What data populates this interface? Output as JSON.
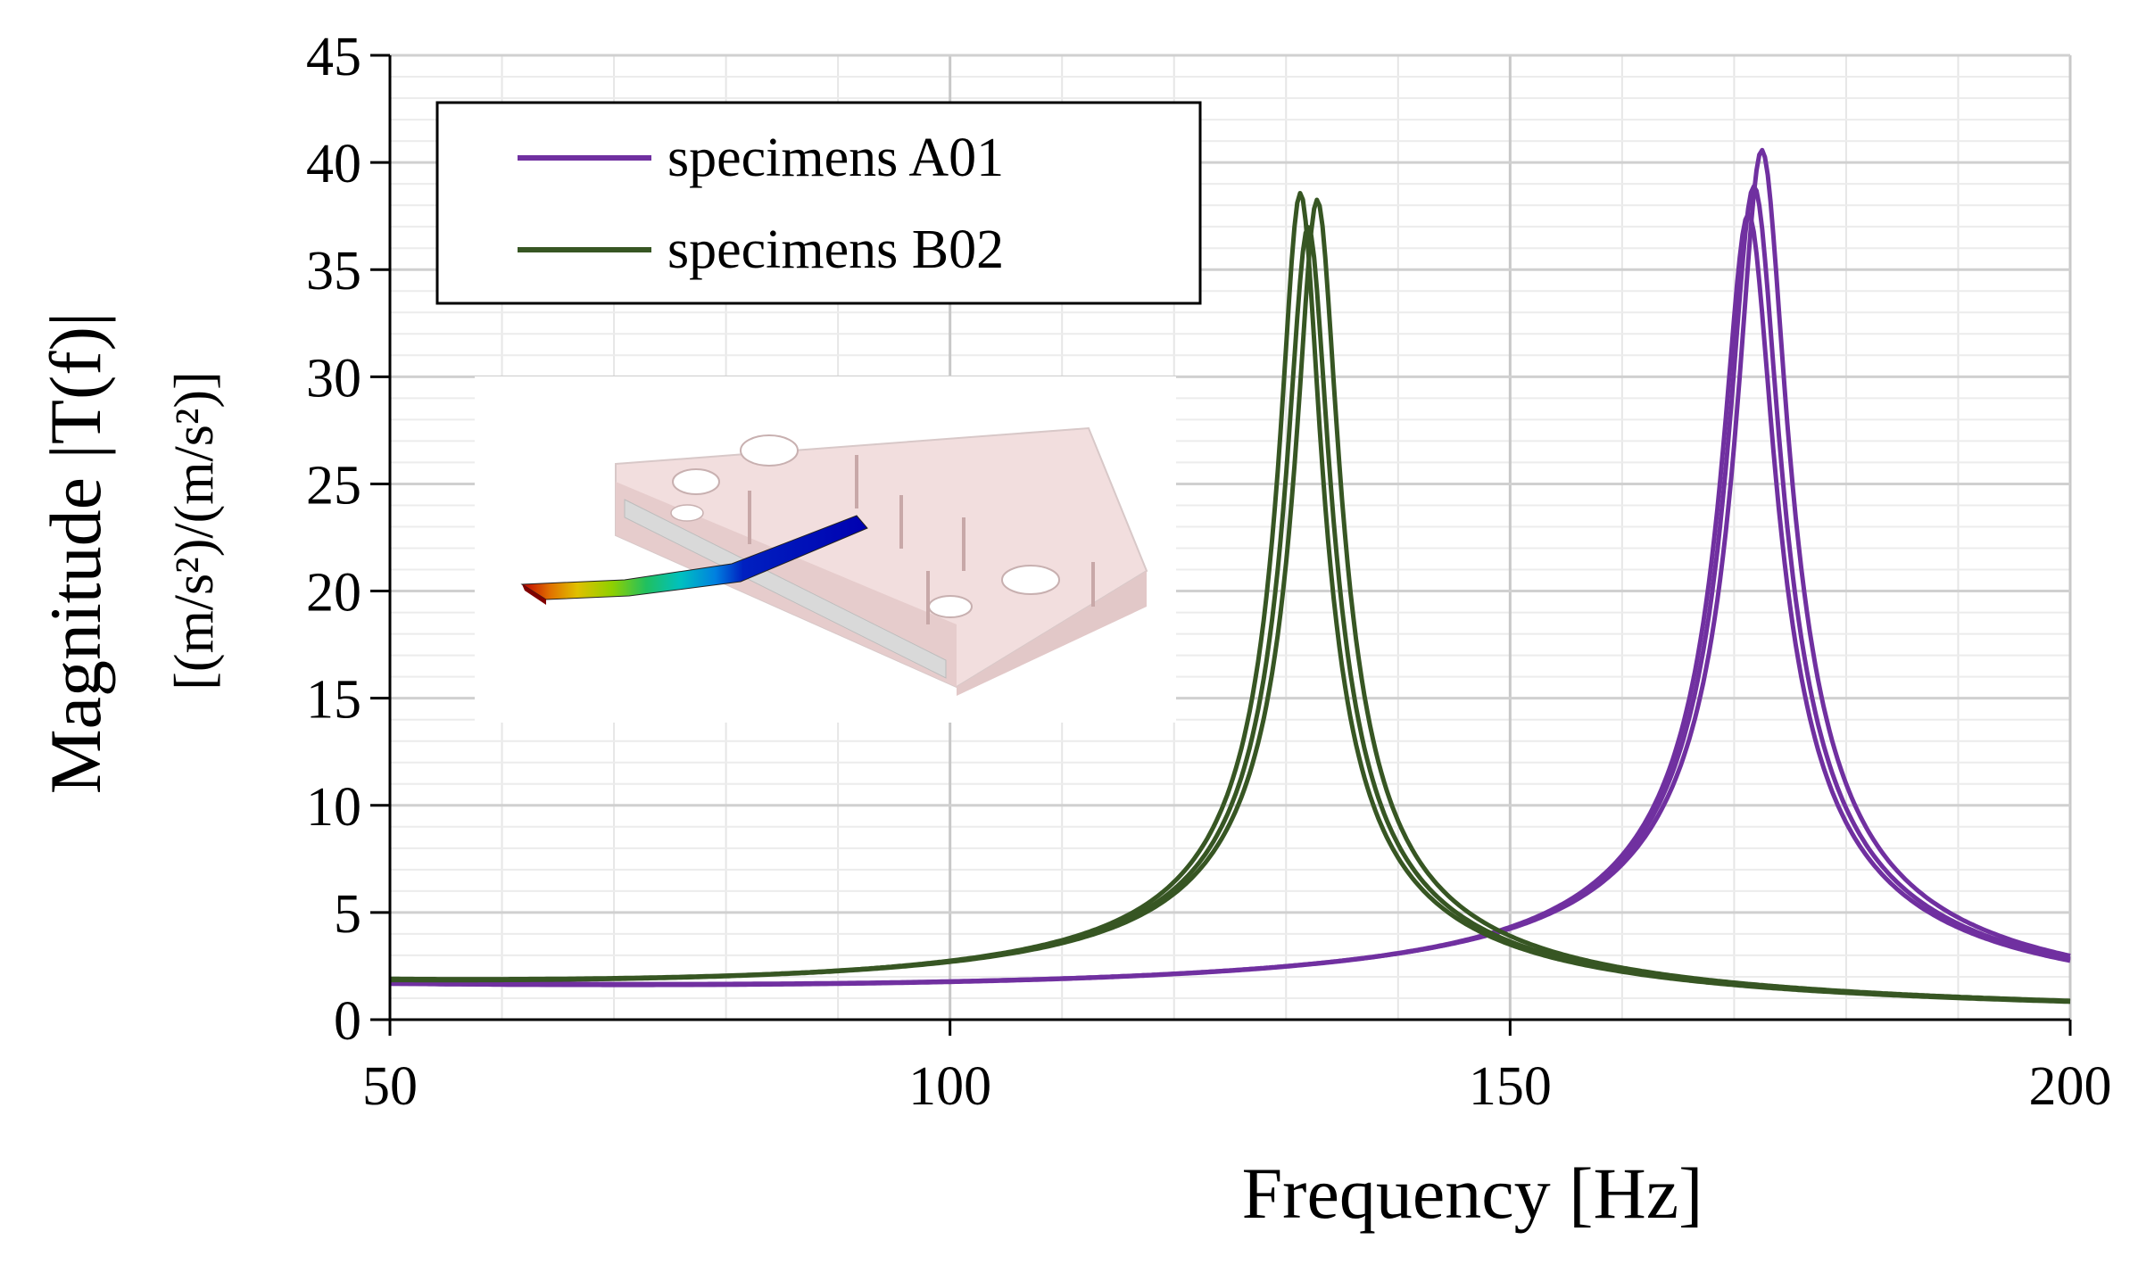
{
  "chart_data": {
    "type": "line",
    "title": "",
    "xlabel": "Frequency [Hz]",
    "ylabel_line1": "Magnitude |T(f)|",
    "ylabel_line2": "[(m/s²)/(m/s²)]",
    "xlim": [
      50,
      200
    ],
    "ylim": [
      0,
      45
    ],
    "x_ticks": [
      50,
      100,
      150,
      200
    ],
    "y_ticks": [
      0,
      5,
      10,
      15,
      20,
      25,
      30,
      35,
      40,
      45
    ],
    "x_tick_labels": [
      "50",
      "100",
      "150",
      "200"
    ],
    "y_tick_labels": [
      "0",
      "5",
      "10",
      "15",
      "20",
      "25",
      "30",
      "35",
      "40",
      "45"
    ],
    "grid": true,
    "legend_position": "top-left",
    "inset_image": "cantilever beam FE mode shape on clamp fixture",
    "series": [
      {
        "name": "specimens A01",
        "color": "#7030a0",
        "curves": [
          {
            "peak_freq": 172.5,
            "peak_mag": 40.5,
            "damping": 0.0125,
            "gain": 0.0044,
            "low": 1.15
          },
          {
            "peak_freq": 171.8,
            "peak_mag": 38.8,
            "damping": 0.0128,
            "gain": 0.0045,
            "low": 1.2
          },
          {
            "peak_freq": 171.3,
            "peak_mag": 37.5,
            "damping": 0.0131,
            "gain": 0.0044,
            "low": 1.35
          }
        ]
      },
      {
        "name": "specimens B02",
        "color": "#375623",
        "curves": [
          {
            "peak_freq": 131.3,
            "peak_mag": 38.4,
            "damping": 0.0135,
            "gain": 0.00125,
            "low": 1.3
          },
          {
            "peak_freq": 132.8,
            "peak_mag": 38.1,
            "damping": 0.0138,
            "gain": 0.00125,
            "low": 1.25
          },
          {
            "peak_freq": 132.0,
            "peak_mag": 36.8,
            "damping": 0.014,
            "gain": 0.00125,
            "low": 1.4
          }
        ]
      }
    ]
  }
}
